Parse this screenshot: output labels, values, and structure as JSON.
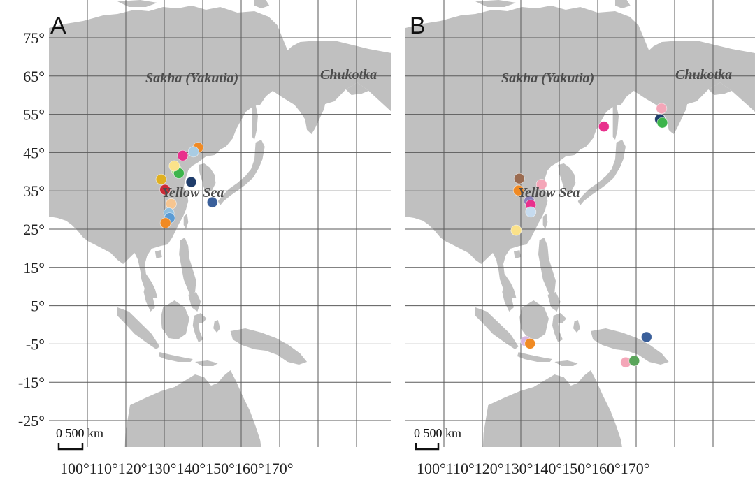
{
  "colors": {
    "land": "#c0c0c0",
    "grid": "#5a5a5a",
    "water": "#ffffff"
  },
  "latitude_labels": [
    "75°",
    "65°",
    "55°",
    "45°",
    "35°",
    "25°",
    "15°",
    "5°",
    "-5°",
    "-15°",
    "-25°"
  ],
  "longitude_labels_joined": "100°110°120°130°140°150°160°170°",
  "panels": [
    {
      "letter": "A",
      "region_labels": {
        "sakha": "Sakha (Yakutia)",
        "chukotka": "Chukotka",
        "yellow_sea": "Yellow Sea"
      },
      "scale_text": "0  500 km",
      "points": [
        {
          "lon": 128.8,
          "lat": 46.3,
          "color": "#f08a24"
        },
        {
          "lon": 127.6,
          "lat": 45.2,
          "color": "#a9cce3"
        },
        {
          "lon": 124.8,
          "lat": 44.2,
          "color": "#e8308c"
        },
        {
          "lon": 123.2,
          "lat": 40.4,
          "color": "#b2df8a"
        },
        {
          "lon": 123.8,
          "lat": 39.6,
          "color": "#3cb44b"
        },
        {
          "lon": 122.6,
          "lat": 41.5,
          "color": "#fbe28a"
        },
        {
          "lon": 119.2,
          "lat": 38.0,
          "color": "#e0b020"
        },
        {
          "lon": 120.2,
          "lat": 35.3,
          "color": "#cc2a36"
        },
        {
          "lon": 127.0,
          "lat": 37.3,
          "color": "#1f3d6b"
        },
        {
          "lon": 121.8,
          "lat": 31.6,
          "color": "#f6c590"
        },
        {
          "lon": 121.2,
          "lat": 29.2,
          "color": "#8fbfe0"
        },
        {
          "lon": 121.4,
          "lat": 27.9,
          "color": "#5a9bd4"
        },
        {
          "lon": 120.3,
          "lat": 26.6,
          "color": "#f08a24"
        },
        {
          "lon": 132.5,
          "lat": 32.0,
          "color": "#3a5f9a"
        }
      ]
    },
    {
      "letter": "B",
      "region_labels": {
        "sakha": "Sakha (Yakutia)",
        "chukotka": "Chukotka",
        "yellow_sea": "Yellow Sea"
      },
      "scale_text": "0  500 km",
      "points": [
        {
          "lon": 119.6,
          "lat": 38.2,
          "color": "#9a6b50"
        },
        {
          "lon": 119.4,
          "lat": 35.1,
          "color": "#f08a24"
        },
        {
          "lon": 125.4,
          "lat": 36.7,
          "color": "#f4a6b8"
        },
        {
          "lon": 122.2,
          "lat": 32.3,
          "color": "#8a7fb8"
        },
        {
          "lon": 122.6,
          "lat": 31.3,
          "color": "#e8308c"
        },
        {
          "lon": 122.6,
          "lat": 29.5,
          "color": "#c6dbef"
        },
        {
          "lon": 118.8,
          "lat": 24.7,
          "color": "#fbe28a"
        },
        {
          "lon": 141.6,
          "lat": 51.8,
          "color": "#e8308c"
        },
        {
          "lon": 156.6,
          "lat": 56.5,
          "color": "#f4a6b8"
        },
        {
          "lon": 156.2,
          "lat": 53.7,
          "color": "#1f3d6b"
        },
        {
          "lon": 156.8,
          "lat": 52.8,
          "color": "#3cb44b"
        },
        {
          "lon": 121.3,
          "lat": -4.3,
          "color": "#d7b5e0"
        },
        {
          "lon": 122.4,
          "lat": -4.9,
          "color": "#f08a24"
        },
        {
          "lon": 152.7,
          "lat": -3.2,
          "color": "#3a5f9a"
        },
        {
          "lon": 147.3,
          "lat": -9.8,
          "color": "#f4a6b8"
        },
        {
          "lon": 149.5,
          "lat": -9.4,
          "color": "#5aa55a"
        }
      ]
    }
  ]
}
